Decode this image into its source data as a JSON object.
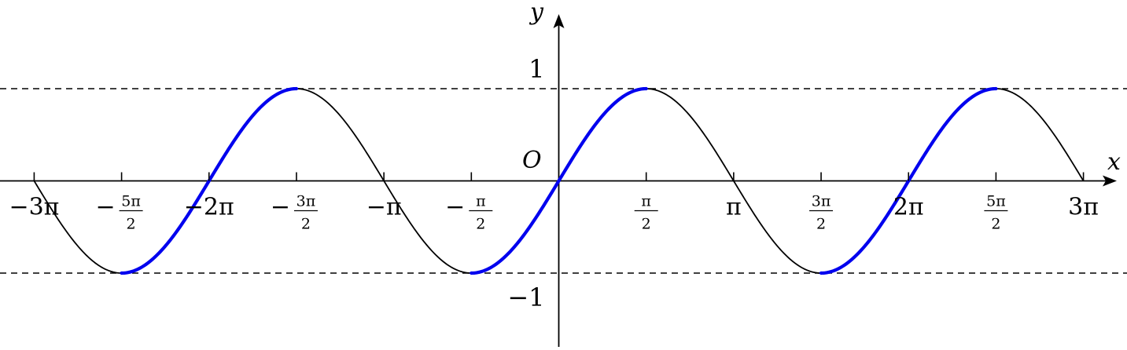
{
  "chart_data": {
    "type": "line",
    "x_axis_label": "x",
    "y_axis_label": "y",
    "origin_label": "O",
    "xlim": [
      -9.5,
      9.3
    ],
    "ylim": [
      -1.82,
      1.72
    ],
    "grid": false,
    "legend": "none",
    "y_ticks": [
      {
        "value": 1,
        "label": "1"
      },
      {
        "value": -1,
        "label": "−1"
      }
    ],
    "x_ticks": [
      {
        "value": -9.42478,
        "label": "−3π"
      },
      {
        "value": -7.85398,
        "sign": "−",
        "num": "5π",
        "den": "2"
      },
      {
        "value": -6.28319,
        "label": "−2π"
      },
      {
        "value": -4.71239,
        "sign": "−",
        "num": "3π",
        "den": "2"
      },
      {
        "value": -3.14159,
        "label": "−π"
      },
      {
        "value": -1.5708,
        "sign": "−",
        "num": "π",
        "den": "2"
      },
      {
        "value": 1.5708,
        "num": "π",
        "den": "2"
      },
      {
        "value": 3.14159,
        "label": "π"
      },
      {
        "value": 4.71239,
        "num": "3π",
        "den": "2"
      },
      {
        "value": 6.28319,
        "label": "2π"
      },
      {
        "value": 7.85398,
        "num": "5π",
        "den": "2"
      },
      {
        "value": 9.42478,
        "label": "3π"
      }
    ],
    "reference_lines": [
      {
        "y": 1,
        "style": "dashed"
      },
      {
        "y": -1,
        "style": "dashed"
      }
    ],
    "series": [
      {
        "function": "sin(x)",
        "domain": [
          -9.42478,
          9.42478
        ],
        "color": "#000000"
      }
    ],
    "highlighted_intervals": [
      {
        "from": -7.85398,
        "to": -4.71239,
        "color": "#0000ee"
      },
      {
        "from": -1.5708,
        "to": 1.5708,
        "color": "#0000ee"
      },
      {
        "from": 4.71239,
        "to": 7.85398,
        "color": "#0000ee"
      }
    ]
  }
}
